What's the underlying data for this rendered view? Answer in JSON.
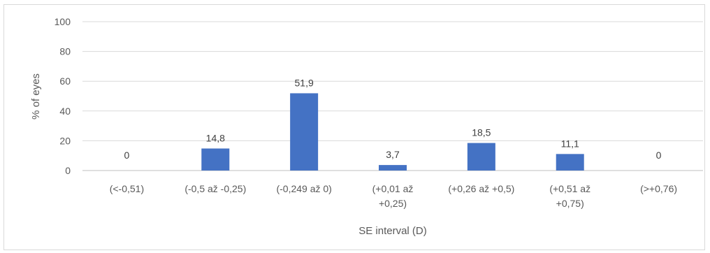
{
  "chart_data": {
    "type": "bar",
    "title": "",
    "xlabel": "SE interval (D)",
    "ylabel": "% of eyes",
    "ylim": [
      0,
      100
    ],
    "yticks": [
      "0",
      "20",
      "40",
      "60",
      "80",
      "100"
    ],
    "grid": true,
    "legend": "none",
    "bar_color": "#4472c4",
    "categories": [
      [
        "(<-0,51)"
      ],
      [
        "(-0,5 až -0,25)"
      ],
      [
        "(-0,249 až 0)"
      ],
      [
        "(+0,01 až",
        "+0,25)"
      ],
      [
        "(+0,26 až +0,5)"
      ],
      [
        "(+0,51 až",
        "+0,75)"
      ],
      [
        "(>+0,76)"
      ]
    ],
    "values": [
      0,
      14.8,
      51.9,
      3.7,
      18.5,
      11.1,
      0
    ],
    "data_labels": [
      "0",
      "14,8",
      "51,9",
      "3,7",
      "18,5",
      "11,1",
      "0"
    ]
  }
}
